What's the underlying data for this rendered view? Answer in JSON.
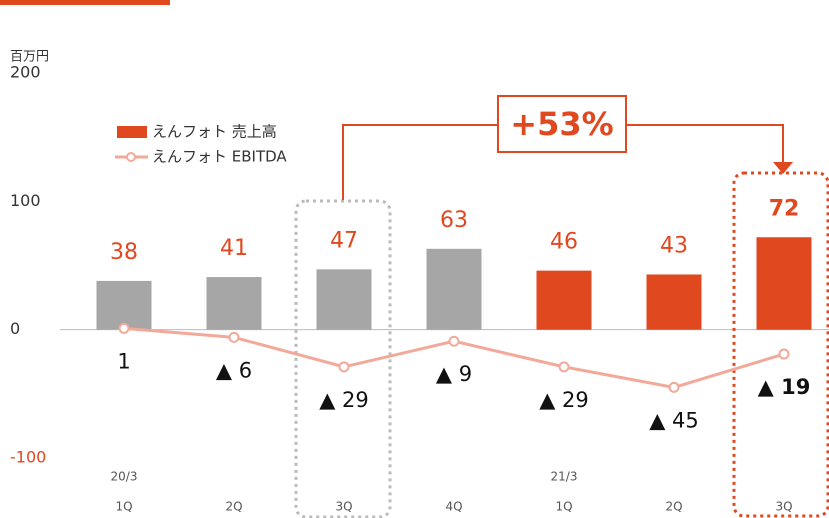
{
  "chart_data": {
    "type": "bar",
    "unit_label": "百万円",
    "categories": [
      "1Q",
      "2Q",
      "3Q",
      "4Q",
      "1Q",
      "2Q",
      "3Q"
    ],
    "period_labels": [
      "20/3",
      null,
      null,
      null,
      "21/3",
      null,
      null
    ],
    "ylim": [
      -100,
      200
    ],
    "yticks": [
      -100,
      0,
      100,
      200
    ],
    "annotation": "+53%",
    "series": [
      {
        "name": "えんフォト 売上高",
        "type": "bar",
        "color": "#e0481f",
        "colors": [
          "#a6a6a6",
          "#a6a6a6",
          "#a6a6a6",
          "#a6a6a6",
          "#e0481f",
          "#e0481f",
          "#e0481f"
        ],
        "values": [
          38,
          41,
          47,
          63,
          46,
          43,
          72
        ]
      },
      {
        "name": "えんフォト EBITDA",
        "type": "line",
        "color": "#f2a99a",
        "values": [
          1,
          -6,
          -29,
          -9,
          -29,
          -45,
          -19
        ],
        "value_labels": [
          "1",
          "▲ 6",
          "▲ 29",
          "▲ 9",
          "▲ 29",
          "▲ 45",
          "▲ 19"
        ]
      }
    ]
  }
}
